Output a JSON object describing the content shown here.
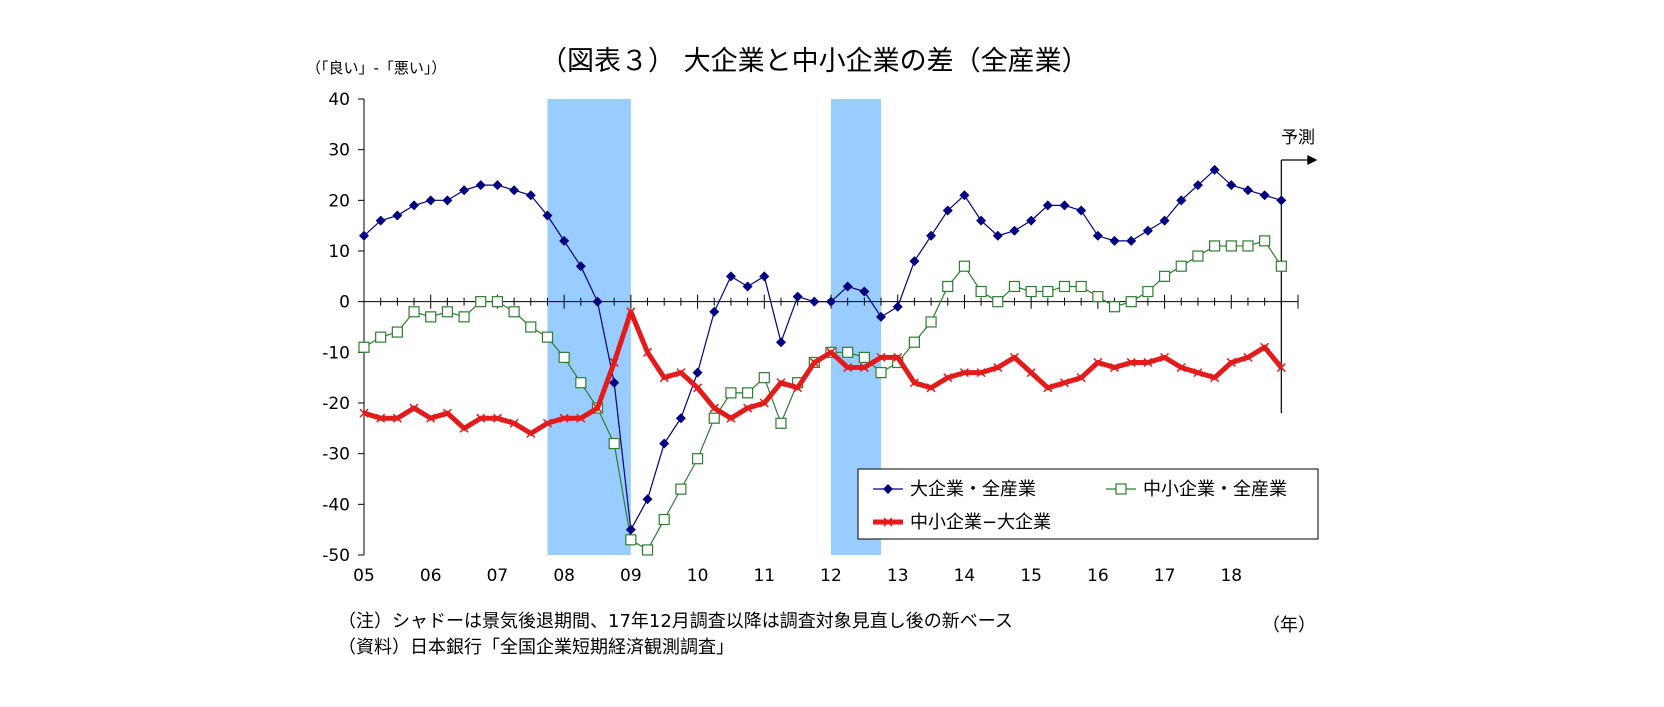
{
  "chart_data": {
    "type": "line",
    "title": "（図表３） 大企業と中小企業の差（全産業）",
    "ylabel": "（「良い」-「悪い」）",
    "xlabel": "（年）",
    "forecast_label": "予測",
    "ylim": [
      -50,
      40
    ],
    "yticks": [
      40,
      30,
      20,
      10,
      0,
      -10,
      -20,
      -30,
      -40,
      -50
    ],
    "year_labels": [
      "05",
      "06",
      "07",
      "08",
      "09",
      "10",
      "11",
      "12",
      "13",
      "14",
      "15",
      "16",
      "17",
      "18"
    ],
    "x_quarters_start": 2005.0,
    "x_quarter_step": 0.25,
    "recession_shading": [
      [
        2007.75,
        2009.0
      ],
      [
        2012.0,
        2012.75
      ]
    ],
    "forecast_start": 2018.75,
    "legend_position": "bottom-right",
    "grid": false,
    "colors": {
      "large": "#000080",
      "small": "#2e7d32",
      "diff": "#e31b1b",
      "shade": "#99ccff"
    },
    "series": [
      {
        "name": "大企業・全産業",
        "values": [
          13,
          16,
          17,
          19,
          20,
          20,
          22,
          23,
          23,
          22,
          21,
          17,
          12,
          7,
          0,
          -16,
          -45,
          -39,
          -28,
          -23,
          -14,
          -2,
          5,
          3,
          5,
          -8,
          1,
          0,
          0,
          3,
          2,
          -3,
          -1,
          8,
          13,
          18,
          21,
          16,
          13,
          14,
          16,
          19,
          19,
          18,
          13,
          12,
          12,
          14,
          16,
          20,
          23,
          26,
          23,
          22,
          21,
          20
        ]
      },
      {
        "name": "中小企業・全産業",
        "values": [
          -9,
          -7,
          -6,
          -2,
          -3,
          -2,
          -3,
          0,
          0,
          -2,
          -5,
          -7,
          -11,
          -16,
          -21,
          -28,
          -47,
          -49,
          -43,
          -37,
          -31,
          -23,
          -18,
          -18,
          -15,
          -24,
          -16,
          -12,
          -10,
          -10,
          -11,
          -14,
          -12,
          -8,
          -4,
          3,
          7,
          2,
          0,
          3,
          2,
          2,
          3,
          3,
          1,
          -1,
          0,
          2,
          5,
          7,
          9,
          11,
          11,
          11,
          12,
          7
        ]
      },
      {
        "name": "中小企業−大企業",
        "values": [
          -22,
          -23,
          -23,
          -21,
          -23,
          -22,
          -25,
          -23,
          -23,
          -24,
          -26,
          -24,
          -23,
          -23,
          -21,
          -12,
          -2,
          -10,
          -15,
          -14,
          -17,
          -21,
          -23,
          -21,
          -20,
          -16,
          -17,
          -12,
          -10,
          -13,
          -13,
          -11,
          -11,
          -16,
          -17,
          -15,
          -14,
          -14,
          -13,
          -11,
          -14,
          -17,
          -16,
          -15,
          -12,
          -13,
          -12,
          -12,
          -11,
          -13,
          -14,
          -15,
          -12,
          -11,
          -9,
          -13
        ]
      }
    ]
  },
  "notes": [
    "（注）シャドーは景気後退期間、17年12月調査以降は調査対象見直し後の新ベース",
    "（資料）日本銀行「全国企業短期経済観測調査」"
  ]
}
